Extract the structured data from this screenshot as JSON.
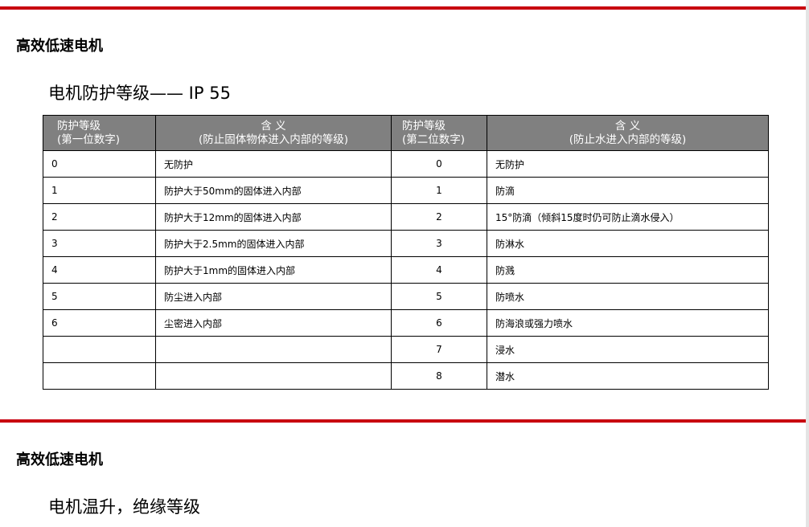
{
  "section1": {
    "heading": "高效低速电机",
    "subheading": "电机防护等级—— IP 55"
  },
  "table": {
    "headers": [
      {
        "line1": "防护等级",
        "line2": "(第一位数字)"
      },
      {
        "line1": "含 义",
        "line2": "(防止固体物体进入内部的等级)"
      },
      {
        "line1": "防护等级",
        "line2": "(第二位数字)"
      },
      {
        "line1": "含 义",
        "line2": "(防止水进入内部的等级)"
      }
    ],
    "rows": [
      [
        "0",
        "无防护",
        "0",
        "无防护"
      ],
      [
        "1",
        "防护大于50mm的固体进入内部",
        "1",
        "防滴"
      ],
      [
        "2",
        "防护大于12mm的固体进入内部",
        "2",
        "15°防滴（倾斜15度时仍可防止滴水侵入）"
      ],
      [
        "3",
        "防护大于2.5mm的固体进入内部",
        "3",
        "防淋水"
      ],
      [
        "4",
        "防护大于1mm的固体进入内部",
        "4",
        "防溅"
      ],
      [
        "5",
        "防尘进入内部",
        "5",
        "防喷水"
      ],
      [
        "6",
        "尘密进入内部",
        "6",
        "防海浪或强力喷水"
      ],
      [
        "",
        "",
        "7",
        "浸水"
      ],
      [
        "",
        "",
        "8",
        "潜水"
      ]
    ]
  },
  "section2": {
    "heading": "高效低速电机",
    "subheading": "电机温升，绝缘等级"
  },
  "colors": {
    "accent": "#c8000f",
    "header_bg": "#808080"
  }
}
